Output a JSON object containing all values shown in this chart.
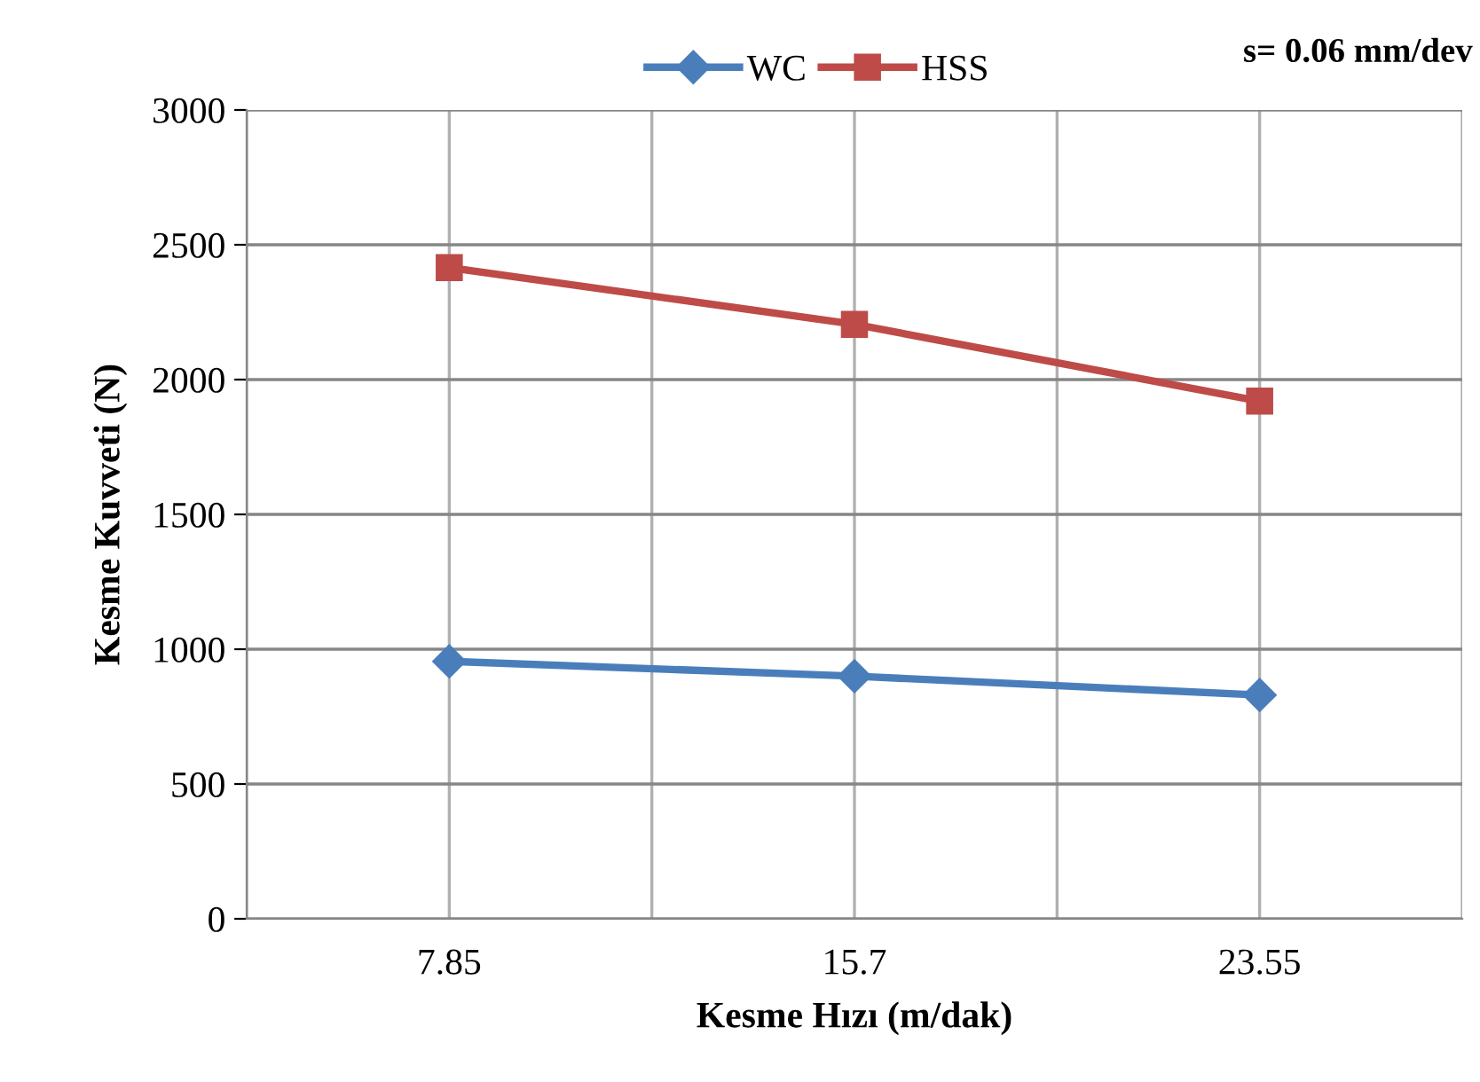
{
  "chart_data": {
    "type": "line",
    "xlabel": "Kesme Hızı (m/dak)",
    "ylabel": "Kesme Kuvveti (N)",
    "categories": [
      "7.85",
      "15.7",
      "23.55"
    ],
    "series": [
      {
        "name": "WC",
        "color": "#4a7ebb",
        "values": [
          955,
          900,
          830
        ],
        "marker": "diamond"
      },
      {
        "name": "HSS",
        "color": "#be4b48",
        "values": [
          2415,
          2205,
          1920
        ],
        "marker": "square"
      }
    ],
    "ylim": [
      0,
      3000
    ],
    "yticks": [
      0,
      500,
      1000,
      1500,
      2000,
      2500,
      3000
    ],
    "grid": true,
    "legend": "top",
    "line_style": "solid",
    "annotations": [
      "s= 0.06 mm/dev"
    ]
  }
}
